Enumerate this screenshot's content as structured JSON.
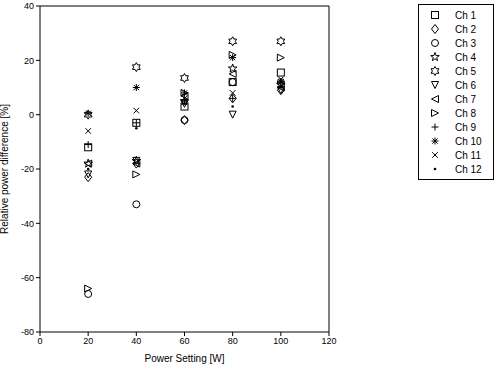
{
  "chart_data": {
    "type": "scatter",
    "xlabel": "Power Setting [W]",
    "ylabel": "Relative power difference [%]",
    "x": [
      20,
      40,
      60,
      80,
      100
    ],
    "xlim": [
      0,
      120
    ],
    "xticks": [
      0,
      20,
      40,
      60,
      80,
      100,
      120
    ],
    "ylim": [
      -80,
      40
    ],
    "yticks": [
      -80,
      -60,
      -40,
      -20,
      0,
      20,
      40
    ],
    "grid": false,
    "legend": "right",
    "series": [
      {
        "name": "Ch 1",
        "color": "#000000",
        "marker": "square",
        "values": [
          -12,
          -3,
          3,
          12,
          15.5
        ]
      },
      {
        "name": "Ch 2",
        "color": "#000000",
        "marker": "diamond",
        "values": [
          -23,
          -18,
          -2,
          6,
          9
        ]
      },
      {
        "name": "Ch 3",
        "color": "#000000",
        "marker": "circle",
        "values": [
          -66,
          -33,
          -2,
          12,
          12
        ]
      },
      {
        "name": "Ch 4",
        "color": "#000000",
        "marker": "star",
        "values": [
          -18,
          -17,
          5,
          17,
          11
        ]
      },
      {
        "name": "Ch 5",
        "color": "#000000",
        "marker": "hexagram",
        "values": [
          0,
          17.5,
          13.5,
          27,
          27
        ]
      },
      {
        "name": "Ch 6",
        "color": "#000000",
        "marker": "triangle-down",
        "values": [
          -22,
          -17,
          4,
          0,
          9
        ]
      },
      {
        "name": "Ch 7",
        "color": "#000000",
        "marker": "triangle-left",
        "values": [
          -18,
          -18,
          7,
          15,
          10
        ]
      },
      {
        "name": "Ch 8",
        "color": "#000000",
        "marker": "triangle-right",
        "values": [
          -64,
          -22,
          8,
          22,
          21
        ]
      },
      {
        "name": "Ch 9",
        "color": "#000000",
        "marker": "plus",
        "values": [
          -11,
          -3,
          5,
          6,
          12
        ]
      },
      {
        "name": "Ch 10",
        "color": "#000000",
        "marker": "asterisk",
        "values": [
          0.5,
          10,
          8,
          21,
          12
        ]
      },
      {
        "name": "Ch 11",
        "color": "#000000",
        "marker": "x",
        "values": [
          -6,
          1.5,
          6,
          8,
          13
        ]
      },
      {
        "name": "Ch 12",
        "color": "#000000",
        "marker": "point",
        "values": [
          -20,
          -5,
          4,
          3,
          10
        ]
      }
    ]
  }
}
